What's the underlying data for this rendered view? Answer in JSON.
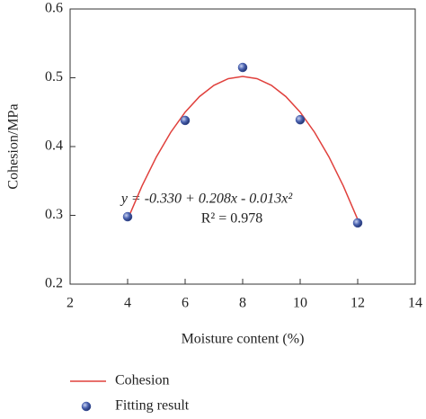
{
  "chart_data": {
    "type": "scatter",
    "xlabel": "Moisture content (%)",
    "ylabel": "Cohesion/MPa",
    "xlim": [
      2,
      14
    ],
    "xticks": [
      2,
      4,
      6,
      8,
      10,
      12,
      14
    ],
    "ylim": [
      0.2,
      0.6
    ],
    "yticks": [
      0.2,
      0.3,
      0.4,
      0.5,
      0.6
    ],
    "equation": "y = -0.330 + 0.208x - 0.013x²",
    "r_squared": "R² = 0.978",
    "series": [
      {
        "name": "Cohesion",
        "color": "#e0403c",
        "kind": "line",
        "x": [
          4,
          4.5,
          5,
          5.5,
          6,
          6.5,
          7,
          7.5,
          8,
          8.5,
          9,
          9.5,
          10,
          10.5,
          11,
          11.5,
          12
        ],
        "values": [
          0.294,
          0.34275,
          0.385,
          0.42075,
          0.45,
          0.47275,
          0.489,
          0.49875,
          0.502,
          0.49875,
          0.489,
          0.47275,
          0.45,
          0.42075,
          0.385,
          0.34275,
          0.294
        ]
      },
      {
        "name": "Fitting result",
        "color": "#3f56a6",
        "kind": "points",
        "x": [
          4,
          6,
          8,
          10,
          12
        ],
        "values": [
          0.298,
          0.438,
          0.515,
          0.439,
          0.289
        ]
      }
    ]
  }
}
